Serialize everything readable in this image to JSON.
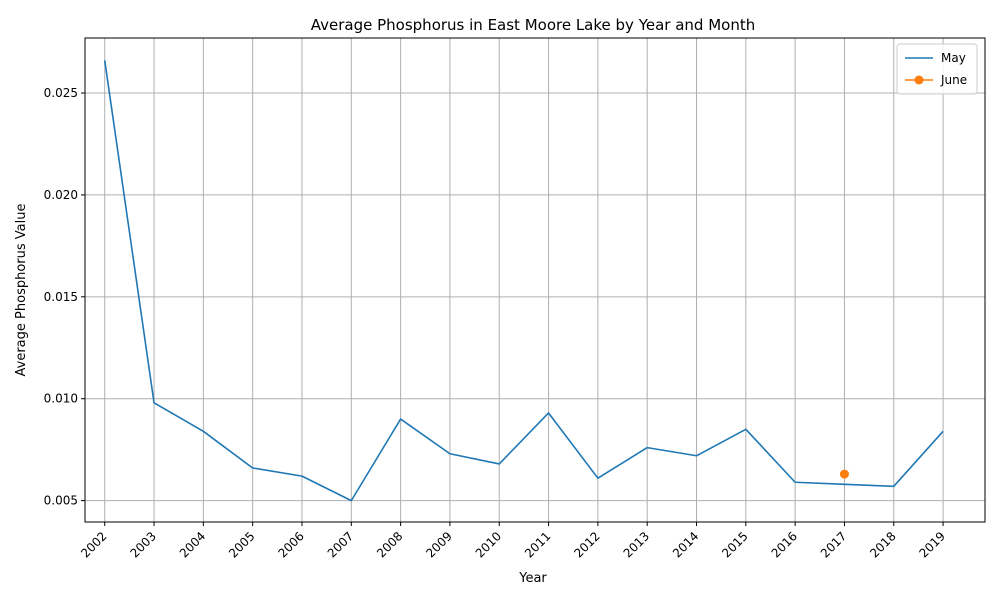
{
  "chart_data": {
    "type": "line",
    "title": "Average Phosphorus in East Moore Lake by Year and Month",
    "xlabel": "Year",
    "ylabel": "Average Phosphorus Value",
    "x": [
      2002,
      2003,
      2004,
      2005,
      2006,
      2007,
      2008,
      2009,
      2010,
      2011,
      2012,
      2013,
      2014,
      2015,
      2016,
      2017,
      2018,
      2019
    ],
    "x_tick_labels": [
      "2002",
      "2003",
      "2004",
      "2005",
      "2006",
      "2007",
      "2008",
      "2009",
      "2010",
      "2011",
      "2012",
      "2013",
      "2014",
      "2015",
      "2016",
      "2017",
      "2018",
      "2019"
    ],
    "y_ticks": [
      0.005,
      0.01,
      0.015,
      0.02,
      0.025
    ],
    "y_tick_labels": [
      "0.005",
      "0.010",
      "0.015",
      "0.020",
      "0.025"
    ],
    "xlim": [
      2001.6,
      2019.85
    ],
    "ylim": [
      0.00395,
      0.0277
    ],
    "grid": true,
    "legend_position": "top-right",
    "series": [
      {
        "name": "May",
        "color": "#1f77b4",
        "marker": "none",
        "x": [
          2002,
          2003,
          2004,
          2005,
          2006,
          2007,
          2008,
          2009,
          2010,
          2011,
          2012,
          2013,
          2014,
          2015,
          2016,
          2017,
          2018,
          2019
        ],
        "values": [
          0.0266,
          0.0098,
          0.0084,
          0.0066,
          0.0062,
          0.005,
          0.009,
          0.0073,
          0.0068,
          0.0093,
          0.0061,
          0.0076,
          0.0072,
          0.0085,
          0.0059,
          0.0058,
          0.0057,
          0.0084
        ]
      },
      {
        "name": "June",
        "color": "#ff7f0e",
        "marker": "circle",
        "x": [
          2017
        ],
        "values": [
          0.0063
        ]
      }
    ]
  }
}
